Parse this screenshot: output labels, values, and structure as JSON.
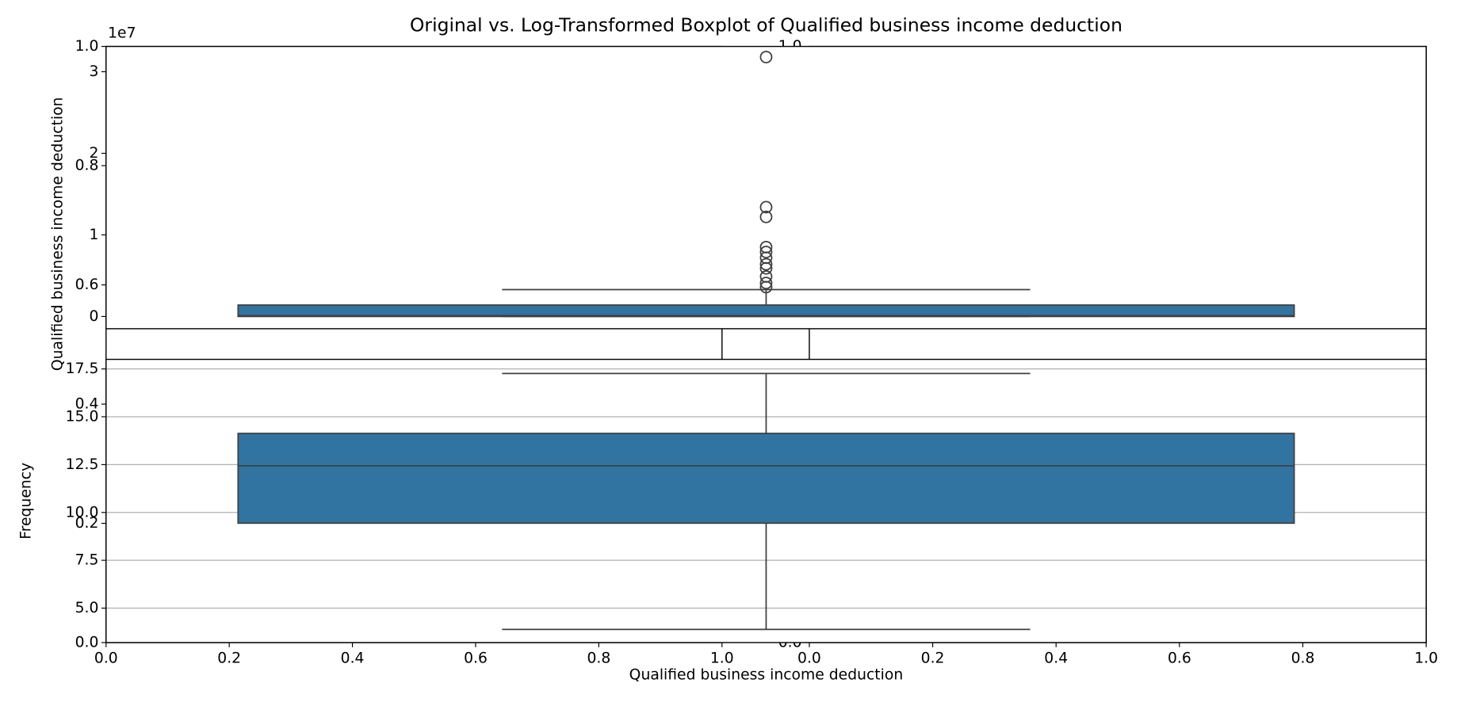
{
  "chart_data": [
    {
      "type": "axes",
      "xlim": [
        0,
        1
      ],
      "ylim": [
        0,
        1
      ],
      "xticks": [
        {
          "value": 0,
          "label": "0.0"
        },
        0.2,
        0.4,
        0.6,
        0.8,
        {
          "value": 1,
          "label": "1.0"
        }
      ],
      "yticks": [
        {
          "value": 0,
          "label": "0.0"
        },
        0.2,
        0.4,
        0.6,
        0.8,
        {
          "value": 1,
          "label": "1.0"
        }
      ]
    },
    {
      "type": "axes",
      "xlim": [
        0,
        1
      ],
      "ylim": [
        0,
        1
      ],
      "xticks": [
        {
          "value": 0,
          "label": "0.0"
        },
        0.2,
        0.4,
        0.6,
        0.8,
        {
          "value": 1,
          "label": "1.0"
        }
      ],
      "yticks": [
        {
          "value": 0,
          "label": "0.0"
        },
        0.2,
        0.4,
        0.6,
        0.8,
        {
          "value": 1,
          "label": "1.0"
        }
      ]
    },
    {
      "type": "box",
      "title": "Original vs. Log-Transformed Boxplot of Qualified business income deduction",
      "ylabel": "Qualified business income deduction",
      "offset_label": "1e7",
      "ylim": [
        -1500000,
        33100000
      ],
      "yticks": [
        0,
        {
          "value": 10000000,
          "label": "1"
        },
        {
          "value": 20000000,
          "label": "2"
        },
        {
          "value": 30000000,
          "label": "3"
        }
      ],
      "color": "#3274a1",
      "edgecolor": "#3f3f3f",
      "grid": false,
      "whislo": 0,
      "q1": 0,
      "med": 100000,
      "q3": 1400000,
      "whishi": 3300000,
      "fliers": [
        31800000,
        13400000,
        12200000,
        8500000,
        7900000,
        7200000,
        6400000,
        5900000,
        4900000,
        4100000,
        3600000
      ]
    },
    {
      "type": "box",
      "ylabel": "Frequency",
      "xlabel": "Qualified business income deduction",
      "ylim": [
        3.2,
        18.0
      ],
      "yticks": [
        {
          "value": 5,
          "label": "5.0"
        },
        7.5,
        {
          "value": 10,
          "label": "10.0"
        },
        12.5,
        {
          "value": 15,
          "label": "15.0"
        },
        17.5
      ],
      "color": "#3274a1",
      "edgecolor": "#3f3f3f",
      "grid": true,
      "whislo": 3.89,
      "q1": 9.44,
      "med": 12.44,
      "q3": 14.13,
      "whishi": 17.26,
      "fliers": []
    }
  ]
}
